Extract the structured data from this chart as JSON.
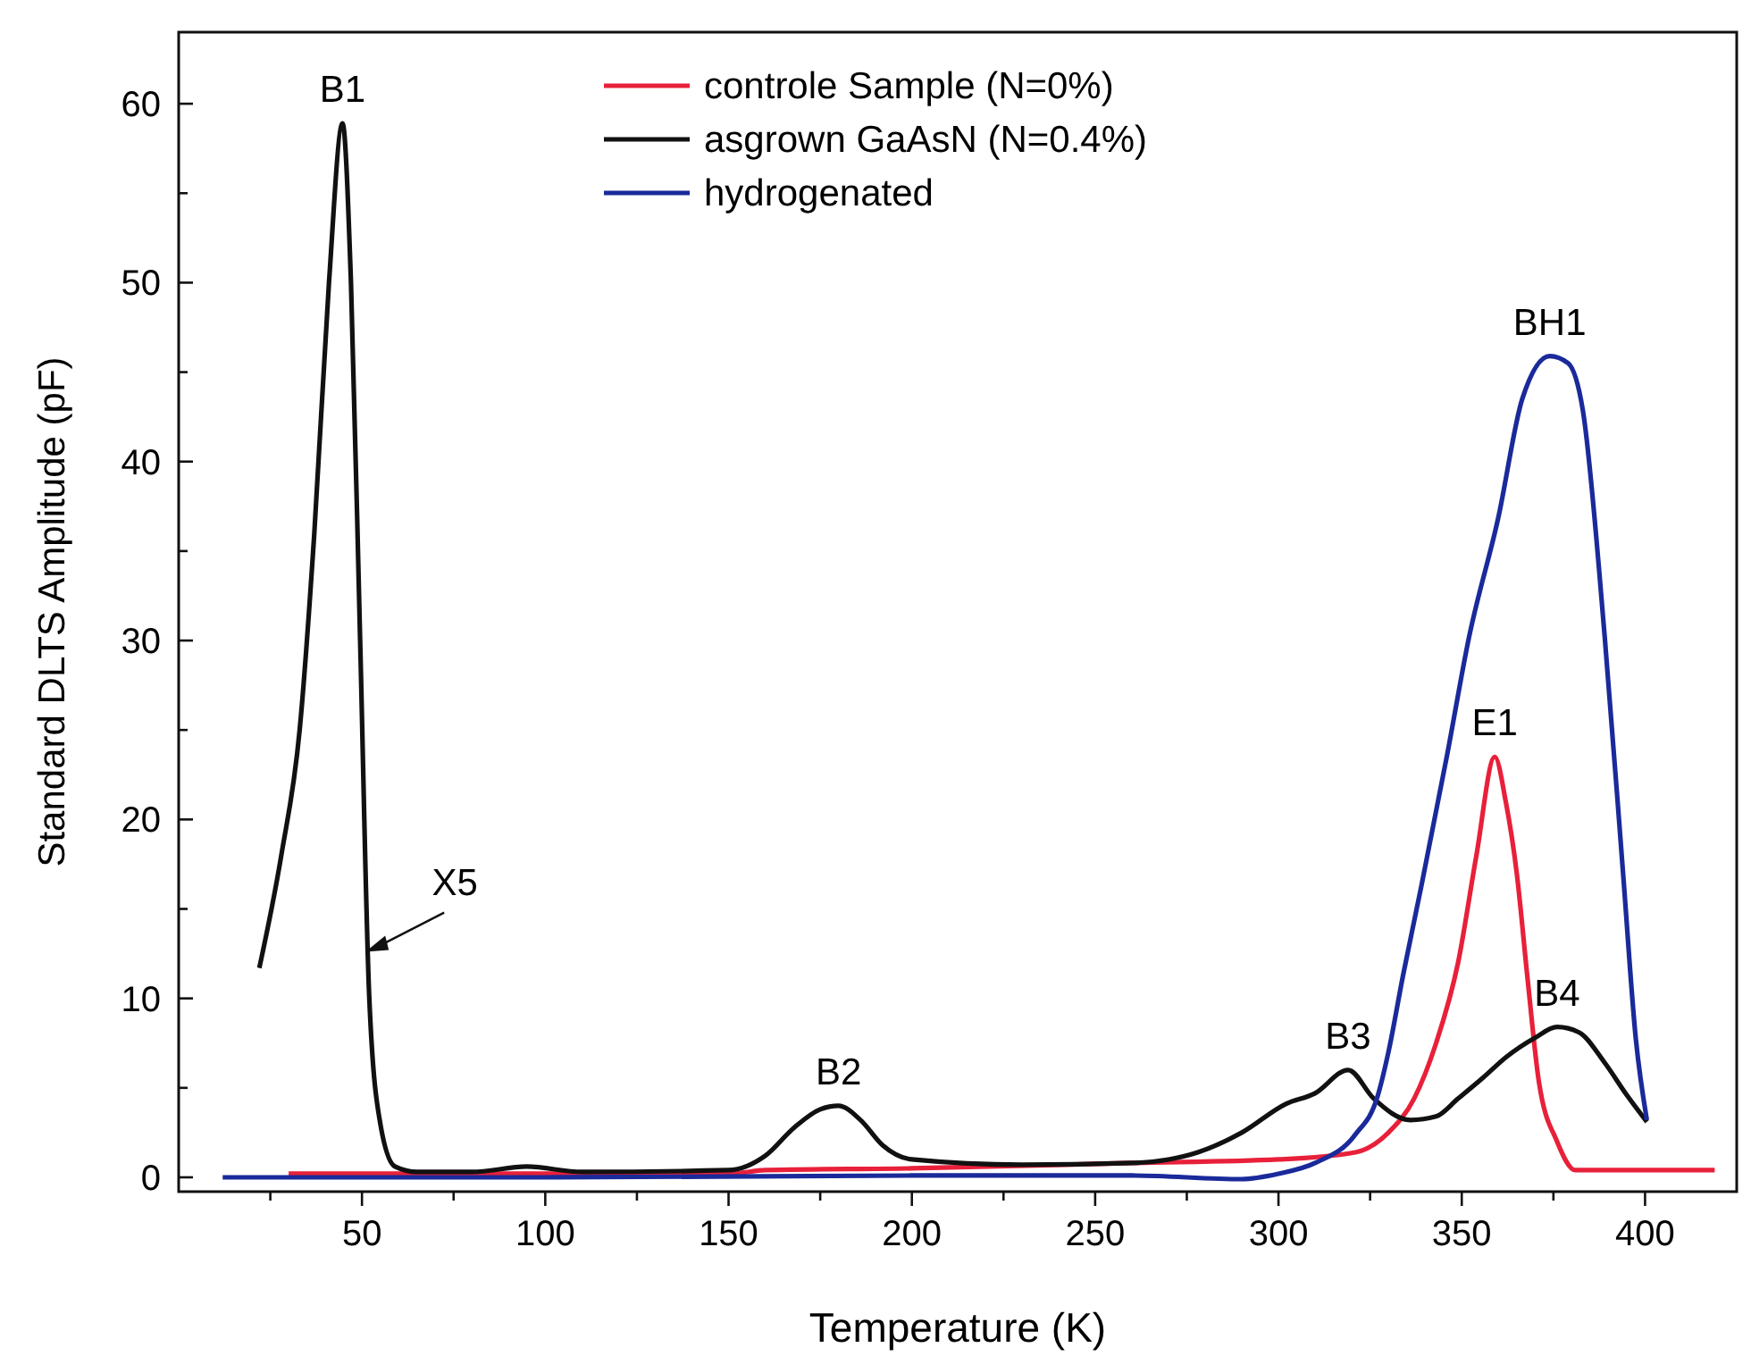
{
  "chart_data": {
    "type": "line",
    "xlabel": "Temperature (K)",
    "ylabel": "Standard DLTS Amplitude (pF)",
    "xlim": [
      0,
      425
    ],
    "ylim": [
      -0.8,
      64
    ],
    "xticks": [
      {
        "value": 25,
        "label": null
      },
      50,
      {
        "value": 75,
        "label": null
      },
      100,
      {
        "value": 125,
        "label": null
      },
      150,
      {
        "value": 175,
        "label": null
      },
      200,
      {
        "value": 225,
        "label": null
      },
      250,
      {
        "value": 275,
        "label": null
      },
      300,
      {
        "value": 325,
        "label": null
      },
      350,
      {
        "value": 375,
        "label": null
      },
      400
    ],
    "yticks": [
      0,
      {
        "value": 5,
        "label": null
      },
      10,
      {
        "value": 15,
        "label": null
      },
      20,
      {
        "value": 25,
        "label": null
      },
      30,
      {
        "value": 35,
        "label": null
      },
      40,
      {
        "value": 45,
        "label": null
      },
      50,
      {
        "value": 55,
        "label": null
      },
      60
    ],
    "legend": "top",
    "line_style": "solid",
    "marker": "none",
    "grid": false,
    "series": [
      {
        "name": "controle Sample (N=0%)",
        "color": "#e8203a",
        "x": [
          30,
          100,
          150,
          160,
          200,
          260,
          300,
          321,
          330,
          337,
          343,
          349,
          354,
          359,
          362,
          365,
          368,
          371,
          376,
          381,
          390,
          419
        ],
        "values": [
          0.2,
          0.2,
          0.2,
          0.4,
          0.5,
          0.8,
          1.0,
          1.4,
          2.5,
          4.4,
          7.5,
          12,
          18,
          23.5,
          21,
          17,
          11,
          5.4,
          2,
          0.4,
          0.4,
          0.4
        ]
      },
      {
        "name": "asgrown GaAsN (N=0.4%)",
        "color": "#111111",
        "x": [
          22,
          28,
          33,
          37,
          41,
          44.7,
          47,
          49.5,
          52,
          55,
          59,
          65,
          80,
          95,
          110,
          150,
          160,
          168,
          175,
          180,
          186,
          192,
          200,
          230,
          260,
          270,
          278,
          290,
          302,
          310,
          319,
          326,
          336,
          343,
          349,
          356,
          362,
          370,
          376,
          382,
          389,
          395,
          400.5
        ],
        "values": [
          11.7,
          18,
          25,
          36,
          50,
          58.9,
          50,
          30,
          10,
          3,
          0.6,
          0.3,
          0.3,
          0.6,
          0.3,
          0.4,
          1.2,
          2.8,
          3.8,
          4,
          3.2,
          1.8,
          1.0,
          0.7,
          0.8,
          1.0,
          1.4,
          2.5,
          4.1,
          4.7,
          6.0,
          4.4,
          3.2,
          3.4,
          4.4,
          5.6,
          6.7,
          7.8,
          8.4,
          8.1,
          6.4,
          4.6,
          3.1
        ]
      },
      {
        "name": "hydrogenated",
        "color": "#1a2a9a",
        "x": [
          12,
          30,
          100,
          200,
          260,
          290,
          300,
          310,
          321,
          327,
          330,
          334,
          339,
          346,
          352,
          360,
          366.5,
          374,
          379,
          383,
          389,
          394,
          397.5,
          400.5
        ],
        "values": [
          0,
          0,
          0,
          0.1,
          0.1,
          -0.1,
          0.2,
          0.8,
          2.4,
          4.5,
          7,
          11.3,
          16.3,
          23.6,
          30.2,
          36.9,
          43.5,
          45.9,
          45.5,
          42.9,
          30.2,
          17,
          7.7,
          3.2
        ]
      }
    ],
    "annotations": [
      {
        "text": "B1",
        "x": 44.7,
        "y": 58.9
      },
      {
        "text": "B2",
        "x": 180,
        "y": 4
      },
      {
        "text": "B3",
        "x": 319,
        "y": 6
      },
      {
        "text": "B4",
        "x": 376,
        "y": 8.4
      },
      {
        "text": "BH1",
        "x": 374,
        "y": 45.9
      },
      {
        "text": "E1",
        "x": 359,
        "y": 23.5
      },
      {
        "text": "X5",
        "x": 50,
        "y": 13
      }
    ]
  }
}
